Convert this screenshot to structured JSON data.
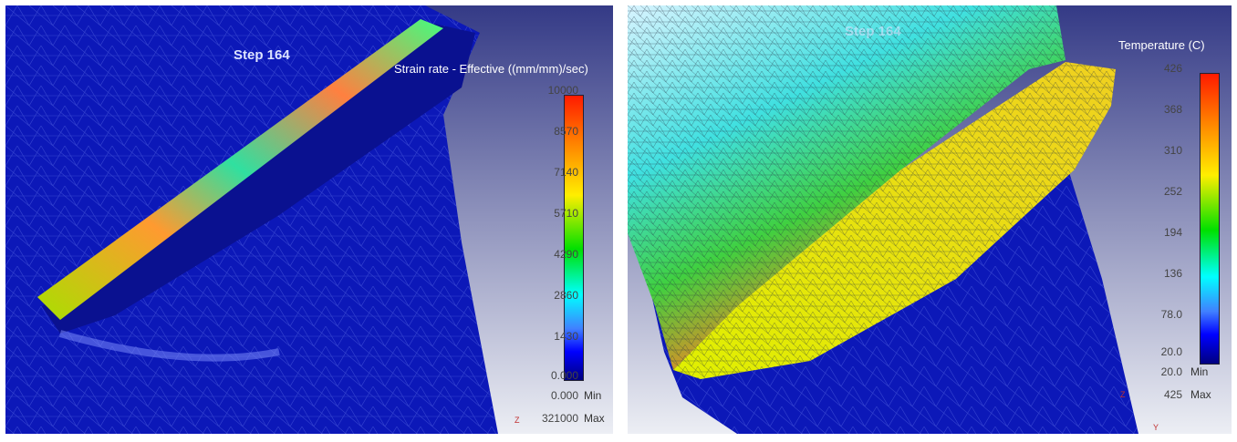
{
  "left_panel": {
    "step_label": "Step  164",
    "legend_title": "Strain rate - Effective ((mm/mm)/sec)",
    "ticks": [
      "10000",
      "8570",
      "7140",
      "5710",
      "4290",
      "2860",
      "1430",
      "0.000"
    ],
    "min_value": "0.000",
    "min_label": "Min",
    "max_value": "321000",
    "max_label": "Max",
    "axis_labels": {
      "z": "Z"
    }
  },
  "right_panel": {
    "step_label": "Step  164",
    "legend_title": "Temperature (C)",
    "ticks": [
      "426",
      "368",
      "310",
      "252",
      "194",
      "136",
      "78.0",
      "20.0"
    ],
    "min_value": "20.0",
    "min_label": "Min",
    "max_value": "425",
    "max_label": "Max",
    "axis_labels": {
      "z": "Z",
      "y": "Y"
    }
  },
  "colors": {
    "bg_top": "#343a86",
    "bg_bottom": "#eceef4",
    "mesh_blue": "#0a14b0"
  }
}
